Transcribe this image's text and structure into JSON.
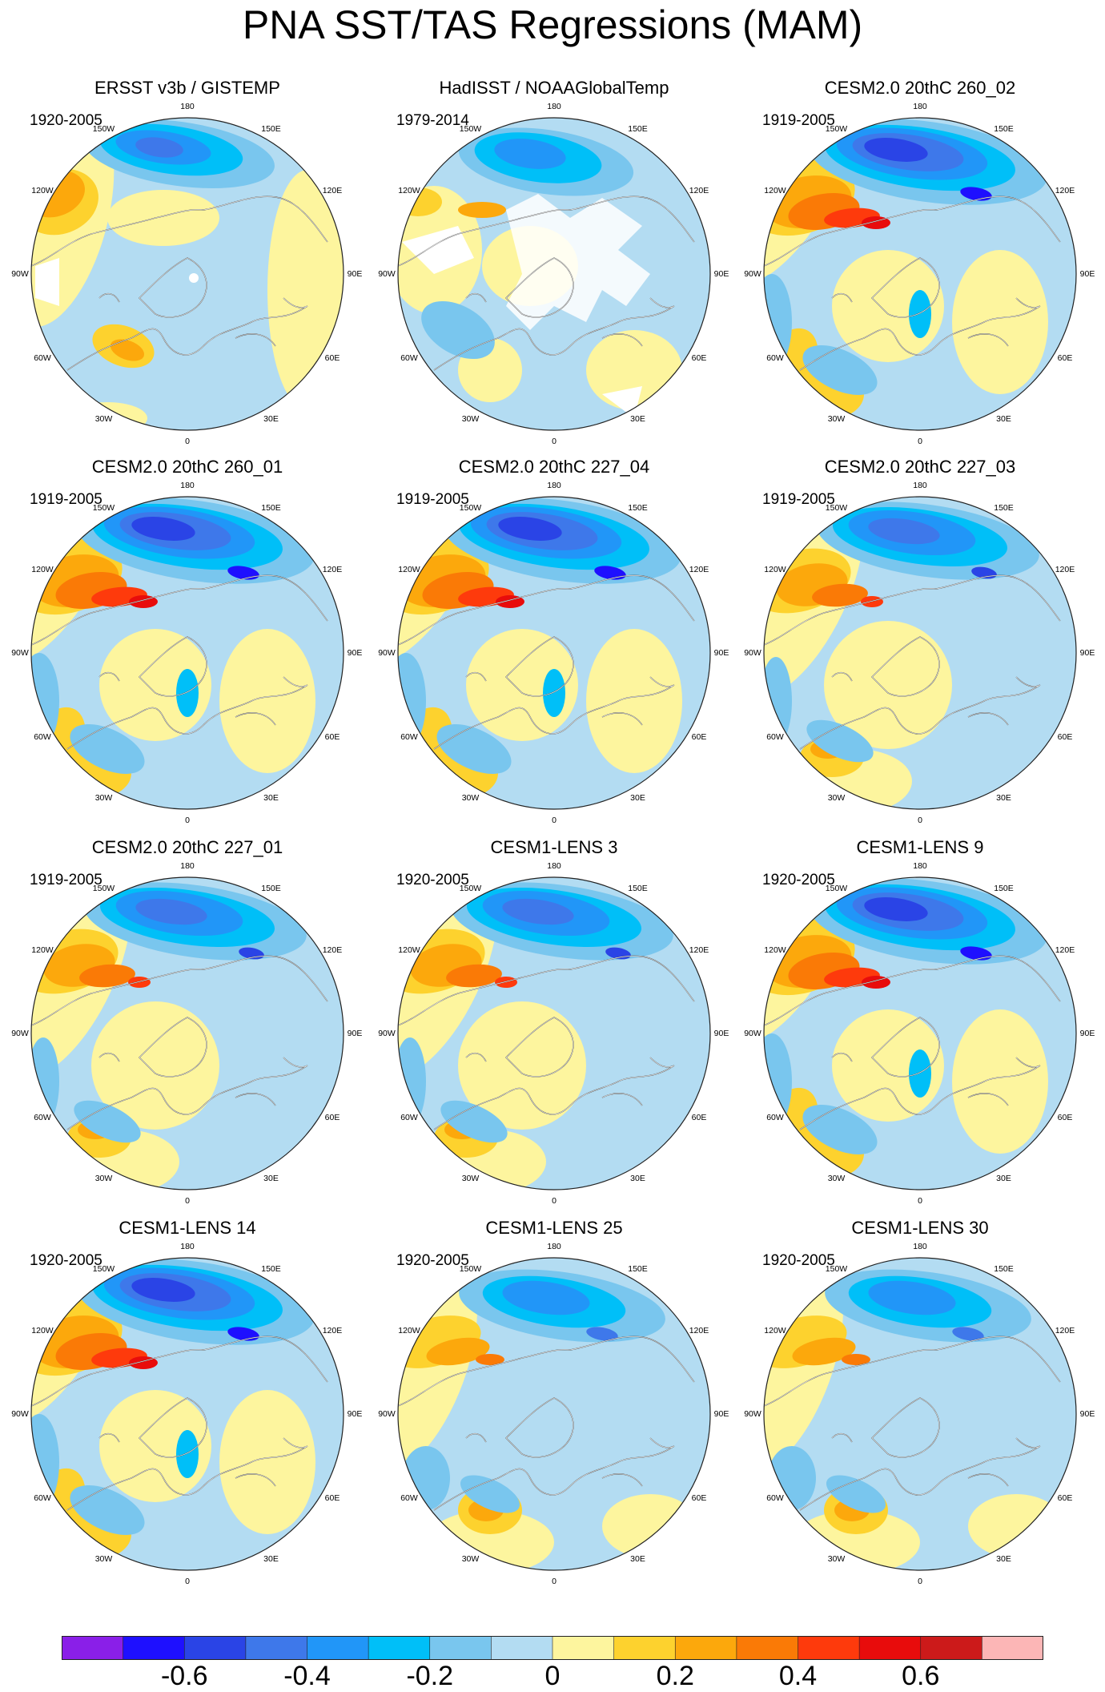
{
  "title": "PNA SST/TAS Regressions (MAM)",
  "panels": [
    {
      "title": "ERSST v3b / GISTEMP",
      "period": "1920-2005",
      "style": "obs1"
    },
    {
      "title": "HadISST / NOAAGlobalTemp",
      "period": "1979-2014",
      "style": "obs2"
    },
    {
      "title": "CESM2.0 20thC 260_02",
      "period": "1919-2005",
      "style": "strong"
    },
    {
      "title": "CESM2.0 20thC 260_01",
      "period": "1919-2005",
      "style": "strong"
    },
    {
      "title": "CESM2.0 20thC 227_04",
      "period": "1919-2005",
      "style": "strong"
    },
    {
      "title": "CESM2.0 20thC 227_03",
      "period": "1919-2005",
      "style": "medium"
    },
    {
      "title": "CESM2.0 20thC 227_01",
      "period": "1919-2005",
      "style": "medium"
    },
    {
      "title": "CESM1-LENS 3",
      "period": "1920-2005",
      "style": "medium"
    },
    {
      "title": "CESM1-LENS 9",
      "period": "1920-2005",
      "style": "strong"
    },
    {
      "title": "CESM1-LENS 14",
      "period": "1920-2005",
      "style": "strong"
    },
    {
      "title": "CESM1-LENS 25",
      "period": "1920-2005",
      "style": "weak"
    },
    {
      "title": "CESM1-LENS 30",
      "period": "1920-2005",
      "style": "weak"
    }
  ],
  "longitude_labels": [
    "180",
    "150E",
    "120E",
    "90E",
    "60E",
    "30E",
    "0",
    "30W",
    "60W",
    "90W",
    "120W",
    "150W"
  ],
  "colorbar": {
    "colors": [
      "#8a1fe8",
      "#1e10ff",
      "#2a44e6",
      "#3e78ea",
      "#2196f8",
      "#00bff8",
      "#79c6ee",
      "#b3dcf2",
      "#fdf59e",
      "#fdd22e",
      "#fca80c",
      "#fa7a06",
      "#fe3a0c",
      "#e80c0c",
      "#cc1a1a",
      "#fcb6b6"
    ],
    "ticks": [
      {
        "label": "-0.6",
        "boundary": 2
      },
      {
        "label": "-0.4",
        "boundary": 4
      },
      {
        "label": "-0.2",
        "boundary": 6
      },
      {
        "label": "0",
        "boundary": 8
      },
      {
        "label": "0.2",
        "boundary": 10
      },
      {
        "label": "0.4",
        "boundary": 12
      },
      {
        "label": "0.6",
        "boundary": 14
      }
    ]
  },
  "chart_data": {
    "type": "heatmap",
    "title": "PNA SST/TAS Regressions (MAM)",
    "projection": "North polar stereographic",
    "variable": "SST/TAS regression onto PNA index",
    "season": "MAM",
    "panels": [
      "ERSST v3b / GISTEMP (1920-2005)",
      "HadISST / NOAAGlobalTemp (1979-2014)",
      "CESM2.0 20thC 260_02 (1919-2005)",
      "CESM2.0 20thC 260_01 (1919-2005)",
      "CESM2.0 20thC 227_04 (1919-2005)",
      "CESM2.0 20thC 227_03 (1919-2005)",
      "CESM2.0 20thC 227_01 (1919-2005)",
      "CESM1-LENS 3 (1920-2005)",
      "CESM1-LENS 9 (1920-2005)",
      "CESM1-LENS 14 (1920-2005)",
      "CESM1-LENS 25 (1920-2005)",
      "CESM1-LENS 30 (1920-2005)"
    ],
    "colorbar_levels": [
      -0.7,
      -0.6,
      -0.5,
      -0.4,
      -0.3,
      -0.2,
      -0.1,
      0,
      0.1,
      0.2,
      0.3,
      0.4,
      0.5,
      0.6,
      0.7
    ],
    "colorbar_ticks": [
      -0.6,
      -0.4,
      -0.2,
      0,
      0.2,
      0.4,
      0.6
    ]
  }
}
